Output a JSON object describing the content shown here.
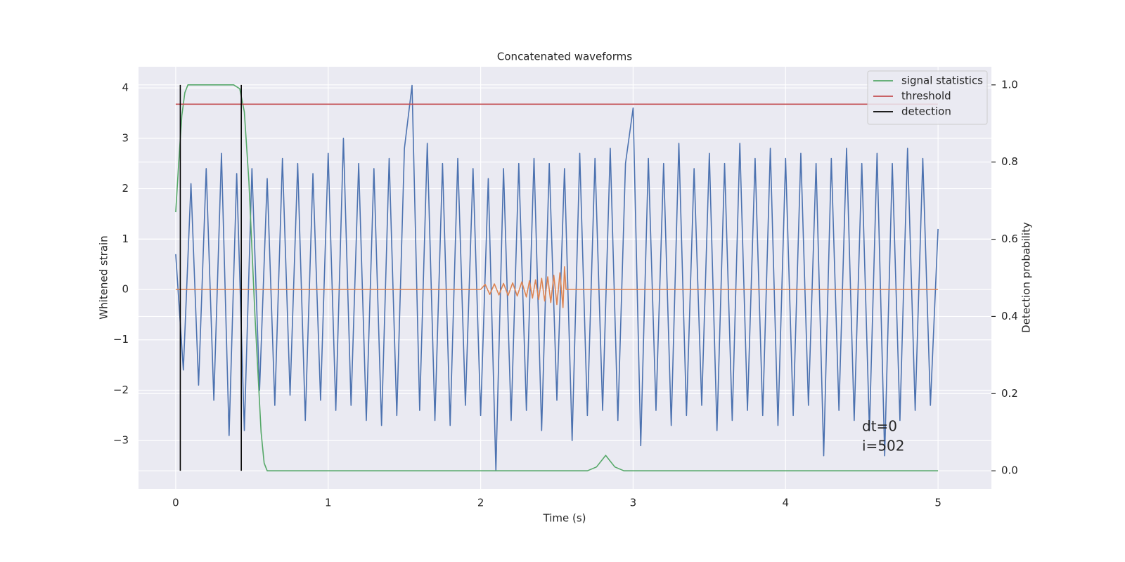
{
  "chart_data": {
    "type": "line",
    "title": "Concatenated waveforms",
    "xlabel": "Time (s)",
    "ylabel": "Whitened strain",
    "y2label": "Detection probability",
    "xlim": [
      -0.244,
      5.35
    ],
    "xticks": [
      0,
      1,
      2,
      3,
      4,
      5
    ],
    "ylim": [
      -3.96,
      4.42
    ],
    "yticks": [
      {
        "value": -3,
        "label": "−3"
      },
      {
        "value": -2,
        "label": "−2"
      },
      {
        "value": -1,
        "label": "−1"
      },
      0,
      1,
      2,
      3,
      4
    ],
    "y2lim": [
      -0.047,
      1.047
    ],
    "y2ticks": [
      {
        "value": 0,
        "label": "0.0"
      },
      0.2,
      0.4,
      0.6,
      0.8,
      {
        "value": 1,
        "label": "1.0"
      }
    ],
    "grid": true,
    "legend": "upper right",
    "annotations": [
      "dt=0",
      "i=502"
    ],
    "series": [
      {
        "color": "#4c72b0",
        "x": [
          0,
          0.05,
          0.1,
          0.15,
          0.2,
          0.25,
          0.3,
          0.35,
          0.4,
          0.45,
          0.5,
          0.55,
          0.6,
          0.65,
          0.7,
          0.75,
          0.8,
          0.85,
          0.9,
          0.95,
          1,
          1.05,
          1.1,
          1.15,
          1.2,
          1.25,
          1.3,
          1.35,
          1.4,
          1.45,
          1.5,
          1.55,
          1.6,
          1.65,
          1.7,
          1.75,
          1.8,
          1.85,
          1.9,
          1.95,
          2,
          2.05,
          2.1,
          2.15,
          2.2,
          2.25,
          2.3,
          2.35,
          2.4,
          2.45,
          2.5,
          2.55,
          2.6,
          2.65,
          2.7,
          2.75,
          2.8,
          2.85,
          2.9,
          2.95,
          3,
          3.05,
          3.1,
          3.15,
          3.2,
          3.25,
          3.3,
          3.35,
          3.4,
          3.45,
          3.5,
          3.55,
          3.6,
          3.65,
          3.7,
          3.75,
          3.8,
          3.85,
          3.9,
          3.95,
          4,
          4.05,
          4.1,
          4.15,
          4.2,
          4.25,
          4.3,
          4.35,
          4.4,
          4.45,
          4.5,
          4.55,
          4.6,
          4.65,
          4.7,
          4.75,
          4.8,
          4.85,
          4.9,
          4.95,
          5
        ],
        "values": [
          0.7,
          -1.6,
          2.1,
          -1.9,
          2.4,
          -2.2,
          2.7,
          -2.9,
          2.3,
          -2.8,
          2.4,
          -2.0,
          2.2,
          -2.3,
          2.6,
          -2.1,
          2.5,
          -2.6,
          2.3,
          -2.2,
          2.7,
          -2.4,
          3.0,
          -2.3,
          2.5,
          -2.6,
          2.4,
          -2.7,
          2.6,
          -2.5,
          2.8,
          4.05,
          -2.4,
          2.9,
          -2.6,
          2.5,
          -2.7,
          2.6,
          -2.3,
          2.4,
          -2.5,
          2.2,
          -3.6,
          2.4,
          -2.6,
          2.5,
          -2.4,
          2.6,
          -2.8,
          2.5,
          -2.2,
          2.4,
          -3.0,
          2.7,
          -2.5,
          2.6,
          -2.4,
          2.8,
          -2.6,
          2.5,
          3.6,
          -3.1,
          2.6,
          -2.4,
          2.5,
          -2.7,
          2.9,
          -2.5,
          2.4,
          -2.3,
          2.7,
          -2.8,
          2.5,
          -2.6,
          2.9,
          -2.4,
          2.6,
          -2.5,
          2.8,
          -2.7,
          2.6,
          -2.5,
          2.7,
          -2.3,
          2.5,
          -3.3,
          2.6,
          -2.4,
          2.8,
          -2.6,
          2.5,
          -2.8,
          2.7,
          -3.3,
          2.5,
          -2.6,
          2.8,
          -2.4,
          2.6,
          -2.3,
          1.2
        ]
      },
      {
        "color": "#dd8452",
        "x": [
          0,
          2.0,
          2.03,
          2.06,
          2.09,
          2.12,
          2.15,
          2.18,
          2.21,
          2.24,
          2.27,
          2.3,
          2.32,
          2.34,
          2.36,
          2.38,
          2.4,
          2.42,
          2.44,
          2.46,
          2.48,
          2.5,
          2.52,
          2.54,
          2.55,
          2.56,
          2.6,
          5
        ],
        "values": [
          0,
          0,
          0.1,
          -0.1,
          0.11,
          -0.11,
          0.12,
          -0.12,
          0.13,
          -0.13,
          0.15,
          -0.15,
          0.17,
          -0.17,
          0.19,
          -0.2,
          0.22,
          -0.23,
          0.25,
          -0.26,
          0.28,
          -0.3,
          0.33,
          -0.36,
          0.45,
          0,
          0,
          0
        ]
      },
      {
        "name": "signal statistics",
        "color": "#55a868",
        "axis": "y2",
        "x": [
          0,
          0.02,
          0.04,
          0.06,
          0.08,
          0.1,
          0.3,
          0.38,
          0.42,
          0.45,
          0.48,
          0.52,
          0.56,
          0.58,
          0.6,
          1.2,
          2.7,
          2.76,
          2.82,
          2.88,
          2.94,
          5
        ],
        "values": [
          0.67,
          0.8,
          0.92,
          0.98,
          1.0,
          1.0,
          1.0,
          1.0,
          0.99,
          0.93,
          0.75,
          0.4,
          0.1,
          0.02,
          0,
          0,
          0,
          0.01,
          0.04,
          0.01,
          0,
          0
        ]
      },
      {
        "name": "threshold",
        "color": "#c44e52",
        "axis": "y2",
        "x": [
          0,
          5
        ],
        "values": [
          0.95,
          0.95
        ]
      },
      {
        "name": "detection",
        "color": "#000000",
        "axis": "y2",
        "x": [
          0.03,
          0.03,
          null,
          0.43,
          0.43
        ],
        "values": [
          0,
          1,
          null,
          0,
          1
        ]
      }
    ]
  }
}
